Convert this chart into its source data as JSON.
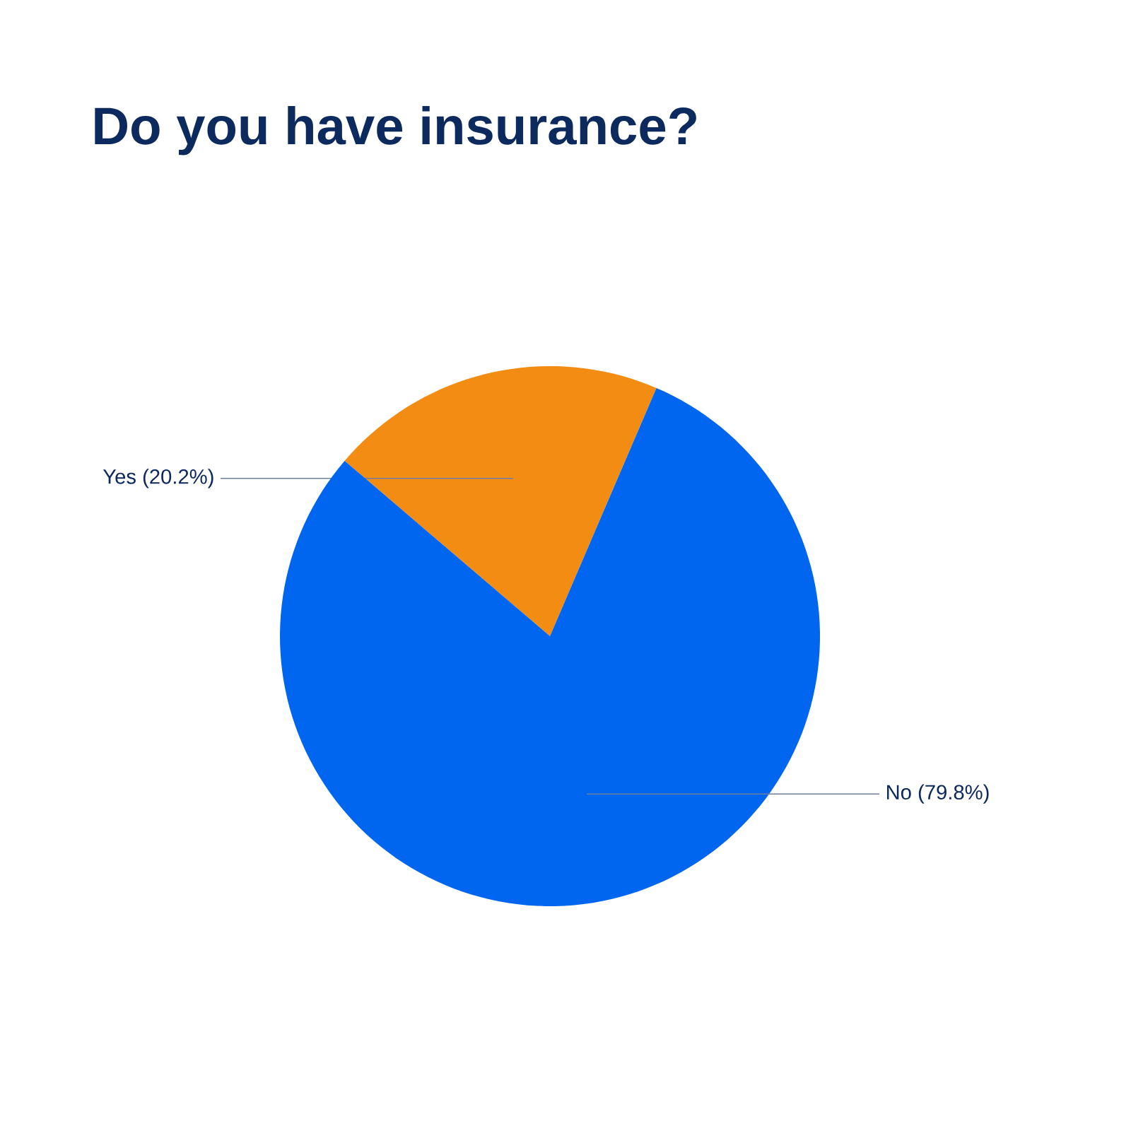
{
  "chart_data": {
    "type": "pie",
    "title": "Do you have insurance?",
    "categories": [
      "Yes",
      "No"
    ],
    "values": [
      20.2,
      79.8
    ],
    "value_labels": [
      "(20.2%)",
      "(79.8%)"
    ],
    "colors": [
      "#f28c12",
      "#0066f0"
    ]
  }
}
